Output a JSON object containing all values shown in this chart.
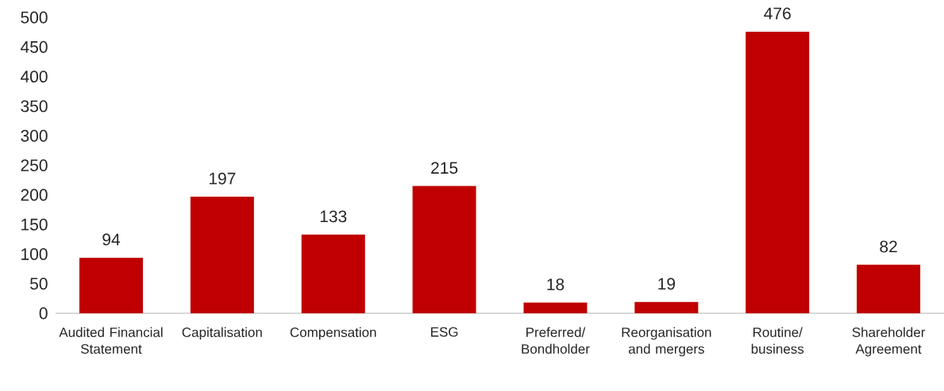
{
  "chart_data": {
    "type": "bar",
    "categories": [
      "Audited Financial Statement",
      "Capitalisation",
      "Compensation",
      "ESG",
      "Preferred/ Bondholder",
      "Reorganisation and mergers",
      "Routine/ business",
      "Shareholder Agreement"
    ],
    "values": [
      94,
      197,
      133,
      215,
      18,
      19,
      476,
      82
    ],
    "color": "#c00000",
    "ylim": [
      0,
      500
    ],
    "yticks": [
      0,
      50,
      100,
      150,
      200,
      250,
      300,
      350,
      400,
      450,
      500
    ],
    "data_labels": true
  }
}
